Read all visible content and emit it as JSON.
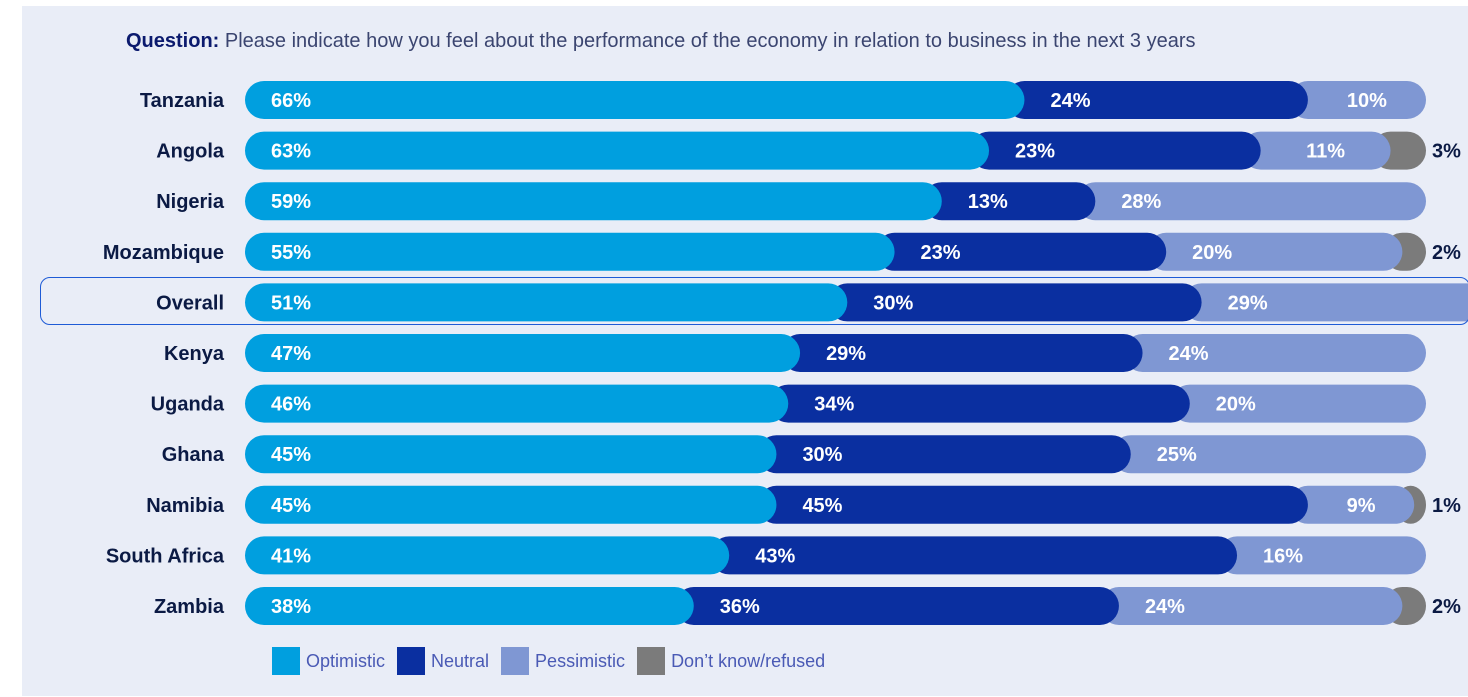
{
  "question": {
    "label": "Question:",
    "text": " Please indicate how you feel about the performance of the economy in relation to business in the next 3 years"
  },
  "colors": {
    "optimistic": "#009fdf",
    "neutral": "#0a2fa0",
    "pessimistic": "#7f97d3",
    "dont_know": "#7b7b7b",
    "highlight_border": "#1e5bd6",
    "background": "#e9edf7",
    "country_label": "#0b1a44"
  },
  "chart_data": {
    "type": "bar",
    "orientation": "horizontal",
    "stacked": true,
    "unit": "%",
    "categories": [
      "Tanzania",
      "Angola",
      "Nigeria",
      "Mozambique",
      "Overall",
      "Kenya",
      "Uganda",
      "Ghana",
      "Namibia",
      "South Africa",
      "Zambia"
    ],
    "highlighted_category": "Overall",
    "series": [
      {
        "name": "Optimistic",
        "values": [
          66,
          63,
          59,
          55,
          51,
          47,
          46,
          45,
          45,
          41,
          38
        ]
      },
      {
        "name": "Neutral",
        "values": [
          24,
          23,
          13,
          23,
          30,
          29,
          34,
          30,
          45,
          43,
          36
        ]
      },
      {
        "name": "Pessimistic",
        "values": [
          10,
          11,
          28,
          20,
          29,
          24,
          20,
          25,
          9,
          16,
          24
        ]
      },
      {
        "name": "Don’t know/refused",
        "values": [
          0,
          3,
          0,
          2,
          0,
          0,
          0,
          0,
          1,
          0,
          2
        ]
      }
    ],
    "legend_position": "bottom"
  }
}
